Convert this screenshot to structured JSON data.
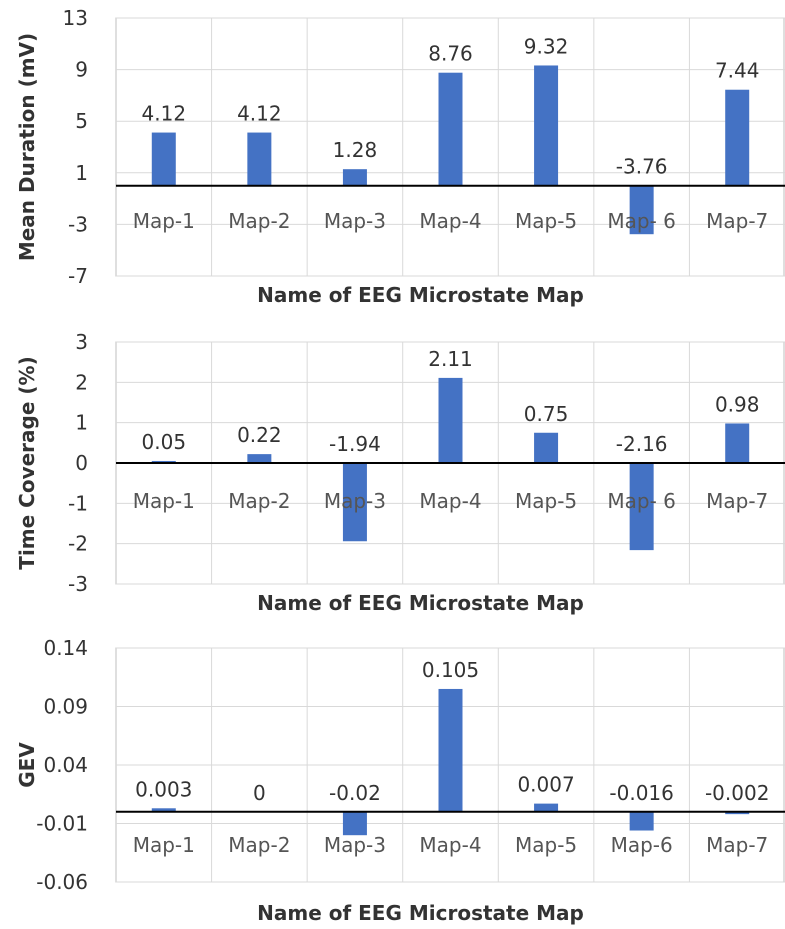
{
  "chart_data": [
    {
      "type": "bar",
      "ylabel": "Mean Duration (mV)",
      "xlabel": "Name of EEG Microstate Map",
      "categories": [
        "Map-1",
        "Map-2",
        "Map-3",
        "Map-4",
        "Map-5",
        "Map- 6",
        "Map-7"
      ],
      "values": [
        4.12,
        4.12,
        1.28,
        8.76,
        9.32,
        -3.76,
        7.44
      ],
      "value_labels": [
        "4.12",
        "4.12",
        "1.28",
        "8.76",
        "9.32",
        "-3.76",
        "7.44"
      ],
      "ylim": [
        -7,
        13
      ],
      "yticks": [
        "13",
        "9",
        "5",
        "1",
        "-3",
        "-7"
      ],
      "ytick_values": [
        13,
        9,
        5,
        1,
        -3,
        -7
      ],
      "grid": true,
      "bar_color": "#4472C4"
    },
    {
      "type": "bar",
      "ylabel": "Time Coverage (%)",
      "xlabel": "Name of EEG Microstate Map",
      "categories": [
        "Map-1",
        "Map-2",
        "Map-3",
        "Map-4",
        "Map-5",
        "Map- 6",
        "Map-7"
      ],
      "values": [
        0.05,
        0.22,
        -1.94,
        2.11,
        0.75,
        -2.16,
        0.98
      ],
      "value_labels": [
        "0.05",
        "0.22",
        "-1.94",
        "2.11",
        "0.75",
        "-2.16",
        "0.98"
      ],
      "ylim": [
        -3,
        3
      ],
      "yticks": [
        "3",
        "2",
        "1",
        "0",
        "-1",
        "-2",
        "-3"
      ],
      "ytick_values": [
        3,
        2,
        1,
        0,
        -1,
        -2,
        -3
      ],
      "grid": true,
      "bar_color": "#4472C4"
    },
    {
      "type": "bar",
      "ylabel": "GEV",
      "xlabel": "Name of EEG Microstate Map",
      "categories": [
        "Map-1",
        "Map-2",
        "Map-3",
        "Map-4",
        "Map-5",
        "Map-6",
        "Map-7"
      ],
      "values": [
        0.003,
        0,
        -0.02,
        0.105,
        0.007,
        -0.016,
        -0.002
      ],
      "value_labels": [
        "0.003",
        "0",
        "-0.02",
        "0.105",
        "0.007",
        "-0.016",
        "-0.002"
      ],
      "ylim": [
        -0.06,
        0.14
      ],
      "yticks": [
        "0.14",
        "0.09",
        "0.04",
        "-0.01",
        "-0.06"
      ],
      "ytick_values": [
        0.14,
        0.09,
        0.04,
        -0.01,
        -0.06
      ],
      "grid": true,
      "bar_color": "#4472C4"
    }
  ]
}
